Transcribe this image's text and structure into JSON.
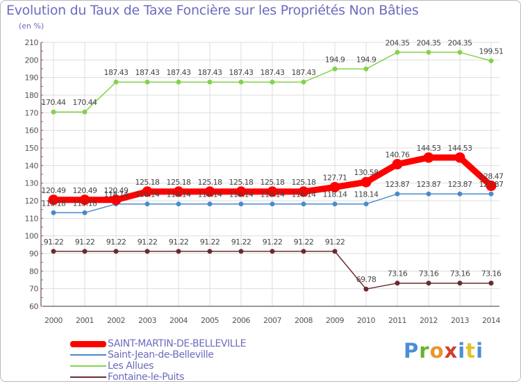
{
  "chart_data": {
    "type": "line",
    "title": "Evolution du Taux de Taxe Foncière sur les Propriétés Non Bâties",
    "subtitle": "(en %)",
    "x": [
      "2000",
      "2001",
      "2002",
      "2003",
      "2004",
      "2005",
      "2006",
      "2007",
      "2008",
      "2009",
      "2010",
      "2011",
      "2012",
      "2013",
      "2014"
    ],
    "ylim": [
      60,
      210
    ],
    "yticks": [
      60,
      70,
      80,
      90,
      100,
      110,
      120,
      130,
      140,
      150,
      160,
      170,
      180,
      190,
      200,
      210
    ],
    "grid": true,
    "legend_position": "bottom-left",
    "series": [
      {
        "name": "SAINT-MARTIN-DE-BELLEVILLE",
        "color": "#ff0000",
        "values": [
          120.49,
          120.49,
          120.49,
          125.18,
          125.18,
          125.18,
          125.18,
          125.18,
          125.18,
          127.71,
          130.58,
          140.76,
          144.53,
          144.53,
          128.47
        ],
        "labels": [
          "120.49",
          "120.49",
          "120.49",
          "125.18",
          "125.18",
          "125.18",
          "125.18",
          "125.18",
          "125.18",
          "127.71",
          "130.58",
          "140.76",
          "144.53",
          "144.53",
          "128.47"
        ]
      },
      {
        "name": "Saint-Jean-de-Belleville",
        "color": "#4a8bc9",
        "values": [
          113.18,
          113.18,
          118.14,
          118.14,
          118.14,
          118.14,
          118.14,
          118.14,
          118.14,
          118.14,
          118.14,
          123.87,
          123.87,
          123.87,
          123.87
        ],
        "labels": [
          "113.18",
          "113.18",
          "118.14",
          "118.14",
          "118.14",
          "118.14",
          "118.14",
          "118.14",
          "118.14",
          "118.14",
          "118.14",
          "123.87",
          "123.87",
          "123.87",
          "123.87"
        ]
      },
      {
        "name": "Les Allues",
        "color": "#84d24c",
        "values": [
          170.44,
          170.44,
          187.43,
          187.43,
          187.43,
          187.43,
          187.43,
          187.43,
          187.43,
          194.9,
          194.9,
          204.35,
          204.35,
          204.35,
          199.51
        ],
        "labels": [
          "170.44",
          "170.44",
          "187.43",
          "187.43",
          "187.43",
          "187.43",
          "187.43",
          "187.43",
          "187.43",
          "194.9",
          "194.9",
          "204.35",
          "204.35",
          "204.35",
          "199.51"
        ]
      },
      {
        "name": "Fontaine-le-Puits",
        "color": "#6b2a2f",
        "values": [
          91.22,
          91.22,
          91.22,
          91.22,
          91.22,
          91.22,
          91.22,
          91.22,
          91.22,
          91.22,
          69.78,
          73.16,
          73.16,
          73.16,
          73.16
        ],
        "labels": [
          "91.22",
          "91.22",
          "91.22",
          "91.22",
          "91.22",
          "91.22",
          "91.22",
          "91.22",
          "91.22",
          "91.22",
          "69.78",
          "73.16",
          "73.16",
          "73.16",
          "73.16"
        ]
      }
    ]
  },
  "branding": {
    "logo_parts": [
      "P",
      "r",
      "o",
      "x",
      "i",
      "t",
      "i"
    ]
  }
}
